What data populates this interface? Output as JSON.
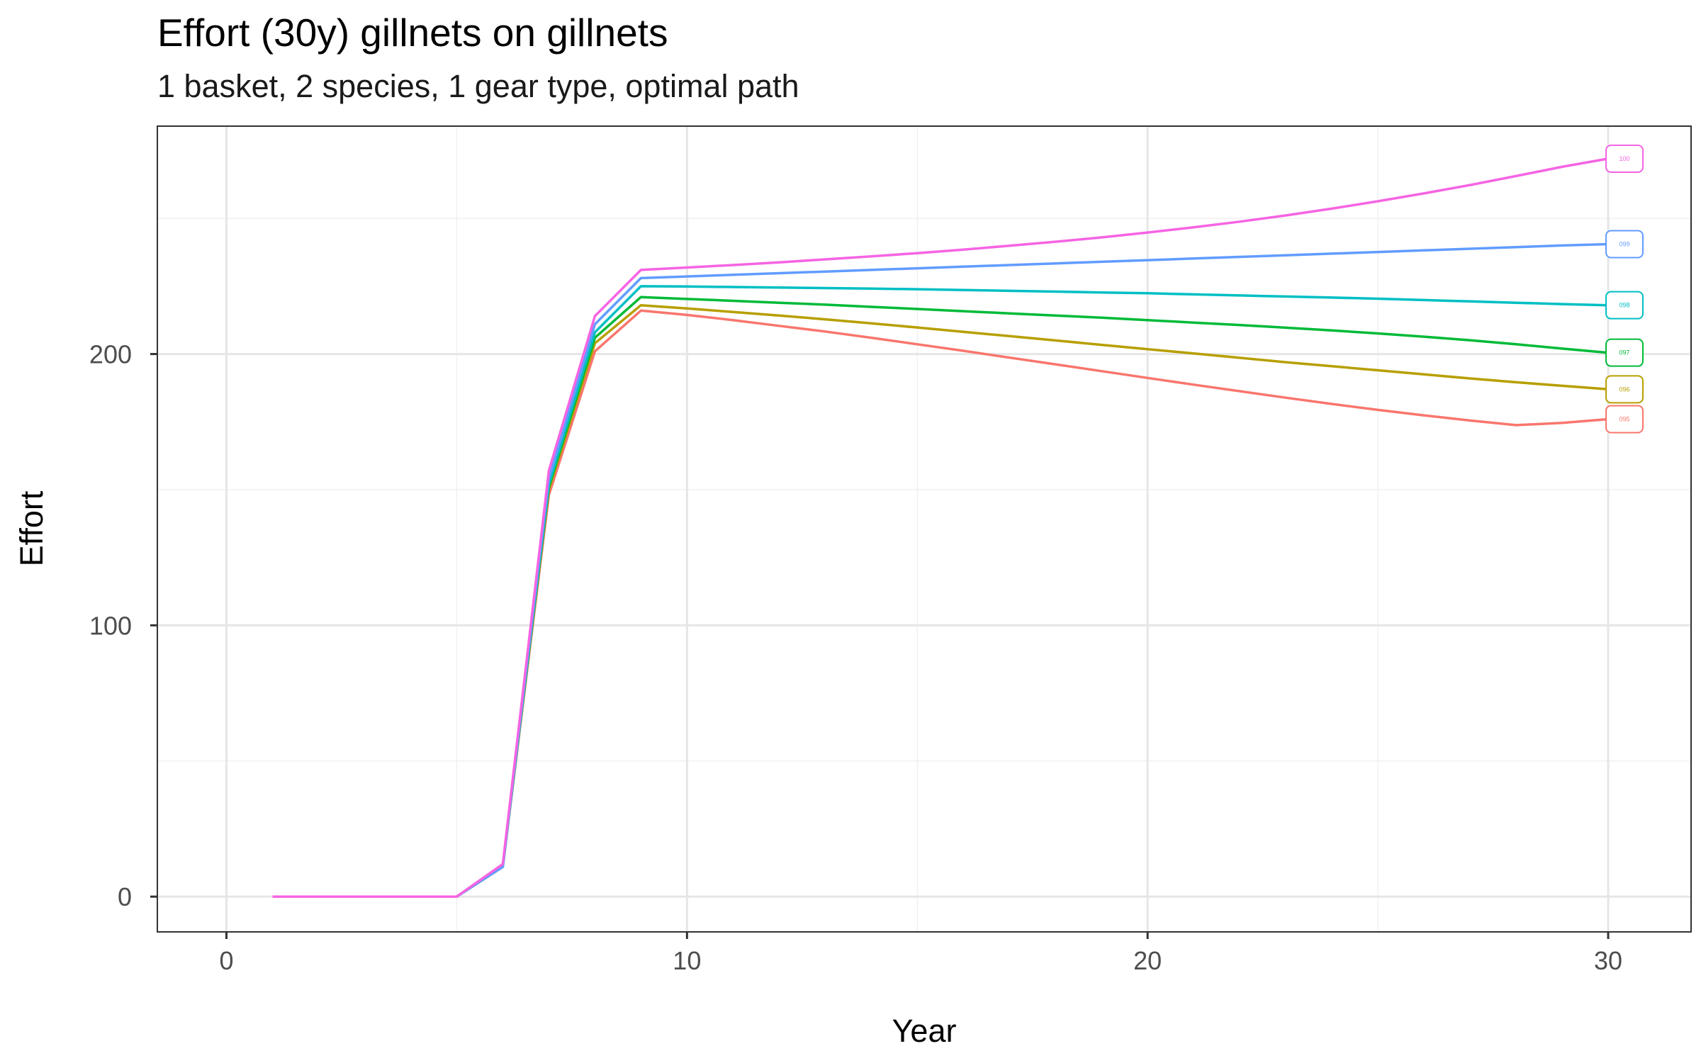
{
  "chart_data": {
    "type": "line",
    "title": "Effort (30y) gillnets on gillnets",
    "subtitle": "1 basket, 2 species, 1 gear type, optimal path",
    "xlabel": "Year",
    "ylabel": "Effort",
    "xlim": [
      -1.5,
      31.8
    ],
    "ylim": [
      -13,
      284
    ],
    "xticks": [
      0,
      10,
      20,
      30
    ],
    "yticks": [
      0,
      100,
      200
    ],
    "grid": true,
    "legend": "end-of-line labels",
    "x": [
      1,
      2,
      3,
      4,
      5,
      6,
      7,
      8,
      9,
      10,
      11,
      12,
      13,
      14,
      15,
      16,
      17,
      18,
      19,
      20,
      21,
      22,
      23,
      24,
      25,
      26,
      27,
      28,
      29,
      30
    ],
    "series": [
      {
        "name": "095",
        "color": "#F8766D",
        "values": [
          0,
          0,
          0,
          0,
          0,
          11,
          148,
          201,
          216,
          214.4,
          212.5,
          210.4,
          208.3,
          206,
          203.6,
          201.2,
          198.7,
          196.2,
          193.7,
          191.2,
          188.7,
          186.3,
          183.9,
          181.6,
          179.4,
          177.4,
          175.5,
          173.8,
          174.6,
          176
        ]
      },
      {
        "name": "096",
        "color": "#B79F00",
        "values": [
          0,
          0,
          0,
          0,
          0,
          11,
          150,
          204,
          218,
          216.8,
          215.5,
          214.2,
          212.8,
          211.3,
          209.8,
          208.2,
          206.6,
          205,
          203.4,
          201.8,
          200.2,
          198.6,
          197,
          195.5,
          194,
          192.5,
          191,
          189.6,
          188.3,
          187
        ]
      },
      {
        "name": "097",
        "color": "#00BA38",
        "values": [
          0,
          0,
          0,
          0,
          0,
          11,
          151,
          206,
          221,
          220.3,
          219.6,
          218.9,
          218.2,
          217.4,
          216.6,
          215.8,
          215,
          214.2,
          213.4,
          212.5,
          211.6,
          210.7,
          209.7,
          208.7,
          207.6,
          206.4,
          205.1,
          203.6,
          202,
          200.5
        ]
      },
      {
        "name": "098",
        "color": "#00BFC4",
        "values": [
          0,
          0,
          0,
          0,
          0,
          11,
          152,
          208,
          225,
          224.9,
          224.7,
          224.5,
          224.3,
          224.1,
          223.9,
          223.6,
          223.3,
          223,
          222.7,
          222.4,
          222,
          221.6,
          221.2,
          220.8,
          220.4,
          219.9,
          219.4,
          218.9,
          218.4,
          218
        ]
      },
      {
        "name": "099",
        "color": "#619CFF",
        "values": [
          0,
          0,
          0,
          0,
          0,
          11,
          154,
          211,
          228,
          228.6,
          229.2,
          229.8,
          230.4,
          231,
          231.6,
          232.2,
          232.8,
          233.4,
          234,
          234.6,
          235.2,
          235.8,
          236.4,
          237,
          237.6,
          238.2,
          238.8,
          239.4,
          240,
          240.5
        ]
      },
      {
        "name": "100",
        "color": "#F564E3",
        "values": [
          0,
          0,
          0,
          0,
          0,
          12,
          157,
          214,
          231,
          231.9,
          232.8,
          233.8,
          234.9,
          236,
          237.2,
          238.5,
          239.9,
          241.4,
          243,
          244.8,
          246.7,
          248.8,
          251.1,
          253.6,
          256.3,
          259.2,
          262.3,
          265.6,
          269,
          272
        ]
      }
    ]
  }
}
